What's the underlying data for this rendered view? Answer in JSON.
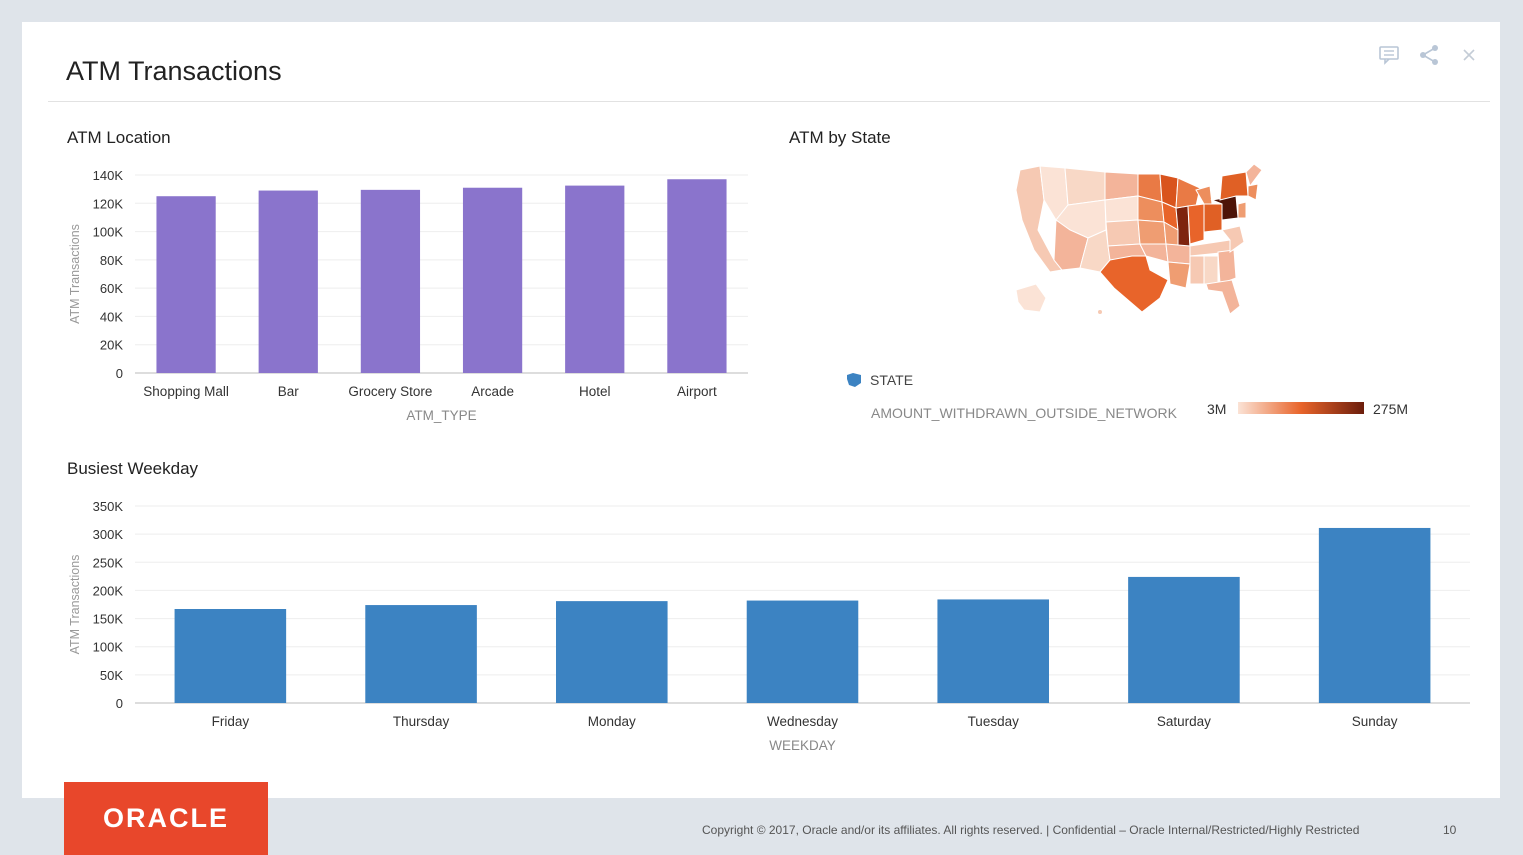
{
  "page": {
    "title": "ATM Transactions",
    "footer_logo": "ORACLE",
    "footer_text": "Copyright © 2017, Oracle and/or its affiliates. All rights reserved.  |  Confidential – Oracle Internal/Restricted/Highly Restricted",
    "page_number": "10"
  },
  "toolbar": {
    "icons": [
      "comment-icon",
      "share-icon",
      "close-icon"
    ]
  },
  "map": {
    "title": "ATM by State",
    "legend_label": "STATE",
    "measure_label": "AMOUNT_WITHDRAWN_OUTSIDE_NETWORK",
    "scale_min": "3M",
    "scale_max": "275M",
    "colors": {
      "low": "#fbe3d6",
      "mid": "#e8642a",
      "high": "#6b1d0c"
    }
  },
  "chart_data": [
    {
      "type": "bar",
      "title": "ATM Location",
      "categories": [
        "Shopping Mall",
        "Bar",
        "Grocery Store",
        "Arcade",
        "Hotel",
        "Airport"
      ],
      "values": [
        125000,
        129000,
        129500,
        131000,
        132500,
        137000
      ],
      "xlabel": "ATM_TYPE",
      "ylabel": "ATM Transactions",
      "ylim": [
        0,
        140000
      ],
      "yticks": [
        0,
        20000,
        40000,
        60000,
        80000,
        100000,
        120000,
        140000
      ],
      "ytick_labels": [
        "0",
        "20K",
        "40K",
        "60K",
        "80K",
        "100K",
        "120K",
        "140K"
      ],
      "color": "#8a74cc",
      "grid": true
    },
    {
      "type": "bar",
      "title": "Busiest Weekday",
      "categories": [
        "Friday",
        "Thursday",
        "Monday",
        "Wednesday",
        "Tuesday",
        "Saturday",
        "Sunday"
      ],
      "values": [
        167000,
        174000,
        181000,
        182000,
        184000,
        224000,
        311000
      ],
      "xlabel": "WEEKDAY",
      "ylabel": "ATM Transactions",
      "ylim": [
        0,
        350000
      ],
      "yticks": [
        0,
        50000,
        100000,
        150000,
        200000,
        250000,
        300000,
        350000
      ],
      "ytick_labels": [
        "0",
        "50K",
        "100K",
        "150K",
        "200K",
        "250K",
        "300K",
        "350K"
      ],
      "color": "#3c83c2",
      "grid": true
    }
  ]
}
